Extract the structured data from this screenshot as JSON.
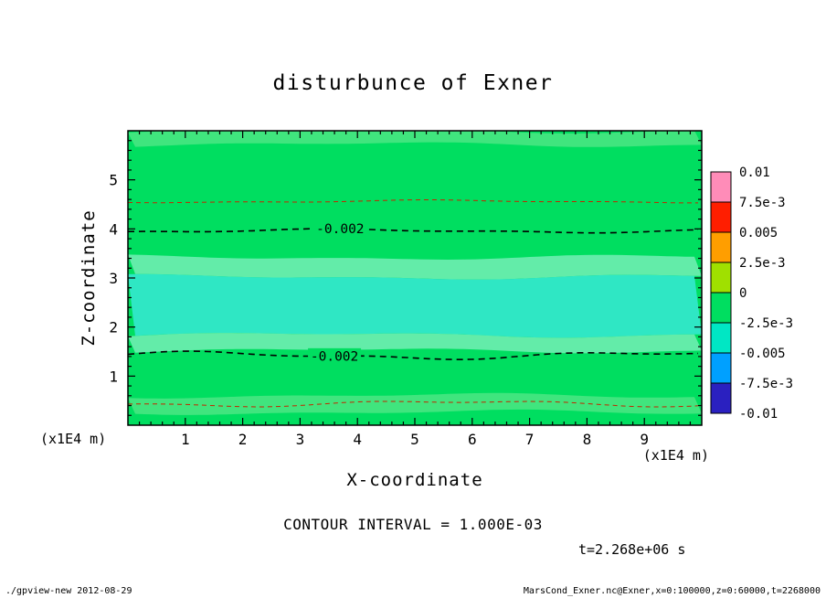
{
  "title": "disturbunce of Exner",
  "axes": {
    "xlabel": "X-coordinate",
    "ylabel": "Z-coordinate",
    "x_unit_left": "(x1E4 m)",
    "x_unit_right": "(x1E4 m)"
  },
  "notes": {
    "contour_interval": "CONTOUR INTERVAL = 1.000E-03",
    "time": "t=2.268e+06 s"
  },
  "footer": {
    "left": "./gpview-new  2012-08-29",
    "right": "MarsCond_Exner.nc@Exner,x=0:100000,z=0:60000,t=2268000"
  },
  "chart_data": {
    "type": "heatmap",
    "title": "disturbunce of Exner",
    "xlabel": "X-coordinate",
    "ylabel": "Z-coordinate",
    "xlim": [
      0,
      10
    ],
    "ylim": [
      0,
      6
    ],
    "x_ticks": [
      "1",
      "2",
      "3",
      "4",
      "5",
      "6",
      "7",
      "8",
      "9"
    ],
    "x_tick_values": [
      1,
      2,
      3,
      4,
      5,
      6,
      7,
      8,
      9
    ],
    "y_ticks": [
      "1",
      "2",
      "3",
      "4",
      "5"
    ],
    "y_tick_values": [
      1,
      2,
      3,
      4,
      5
    ],
    "grid": false,
    "base_fill": "#00de60",
    "fill_bands": [
      {
        "z_top": 6.0,
        "z_bot": 5.72,
        "color": "#40e57e"
      },
      {
        "z_top": 3.42,
        "z_bot": 3.02,
        "color": "#63eca9"
      },
      {
        "z_top": 3.02,
        "z_bot": 1.84,
        "color": "#2fe7c4"
      },
      {
        "z_top": 1.84,
        "z_bot": 1.52,
        "color": "#63eca9"
      },
      {
        "z_top": 0.6,
        "z_bot": 0.26,
        "color": "#40e57e"
      }
    ],
    "contour_lines": [
      {
        "z": 4.56,
        "color": "#c22800",
        "width": 1,
        "dash": "5,4",
        "amp": 1.2,
        "phase": 40,
        "label": null,
        "label_x": null
      },
      {
        "z": 3.96,
        "color": "#000000",
        "width": 1.6,
        "dash": "7,5",
        "amp": 1.6,
        "phase": 150,
        "label": "-0.002",
        "label_x": 3.7
      },
      {
        "z": 1.42,
        "color": "#000000",
        "width": 1.6,
        "dash": "7,5",
        "amp": 3.2,
        "phase": 300,
        "label": "-0.002",
        "label_x": 3.6
      },
      {
        "z": 0.44,
        "color": "#c22800",
        "width": 1,
        "dash": "5,4",
        "amp": 2.6,
        "phase": 520,
        "label": null,
        "label_x": null
      }
    ],
    "contour_interval": "1.000E-03",
    "time": "t=2.268e+06 s",
    "colorbar": {
      "position": "right",
      "tick_labels": [
        "0.01",
        "7.5e-3",
        "0.005",
        "2.5e-3",
        "0",
        "-2.5e-3",
        "-0.005",
        "-7.5e-3",
        "-0.01"
      ],
      "cell_colors": [
        "#ff8cb8",
        "#ff1e00",
        "#ff9e00",
        "#a0e000",
        "#00de60",
        "#00e7c4",
        "#00a0ff",
        "#2a20c0"
      ]
    }
  }
}
